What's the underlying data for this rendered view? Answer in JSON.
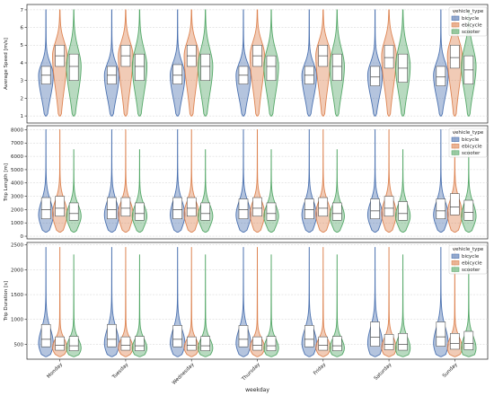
{
  "chart_data": {
    "type": "violin",
    "xlabel": "weekday",
    "categories": [
      "Monday",
      "Tuesday",
      "Wednesday",
      "Thursday",
      "Friday",
      "Saturday",
      "Sunday"
    ],
    "legend": {
      "title": "vehicle_type",
      "placement": "top-right",
      "entries": [
        {
          "name": "bicycle",
          "color": "#4c72b0"
        },
        {
          "name": "ebicycle",
          "color": "#dd8452"
        },
        {
          "name": "scooter",
          "color": "#55a868"
        }
      ]
    },
    "grid": true,
    "panels": [
      {
        "ylabel": "Average Speed [m/s]",
        "ylim": [
          0.6,
          7.3
        ],
        "yticks": [
          1,
          2,
          3,
          4,
          5,
          6,
          7
        ],
        "tick_labels": [
          "1",
          "2",
          "3",
          "4",
          "5",
          "6",
          "7"
        ],
        "series": [
          {
            "name": "bicycle",
            "min": 1.0,
            "max": 7.0,
            "q1": 2.8,
            "median": 3.3,
            "q3": 3.8,
            "mode": 3.3,
            "by_day": [
              {
                "q1": 2.8,
                "median": 3.3,
                "q3": 3.8
              },
              {
                "q1": 2.8,
                "median": 3.3,
                "q3": 3.8
              },
              {
                "q1": 2.8,
                "median": 3.3,
                "q3": 3.9
              },
              {
                "q1": 2.8,
                "median": 3.3,
                "q3": 3.8
              },
              {
                "q1": 2.8,
                "median": 3.3,
                "q3": 3.8
              },
              {
                "q1": 2.7,
                "median": 3.2,
                "q3": 3.8
              },
              {
                "q1": 2.7,
                "median": 3.2,
                "q3": 3.8
              }
            ]
          },
          {
            "name": "ebicycle",
            "min": 1.0,
            "max": 7.0,
            "q1": 3.8,
            "median": 4.4,
            "q3": 5.0,
            "mode": 4.4,
            "by_day": [
              {
                "q1": 3.8,
                "median": 4.4,
                "q3": 5.0
              },
              {
                "q1": 3.8,
                "median": 4.4,
                "q3": 5.0
              },
              {
                "q1": 3.8,
                "median": 4.4,
                "q3": 5.0
              },
              {
                "q1": 3.8,
                "median": 4.4,
                "q3": 5.0
              },
              {
                "q1": 3.8,
                "median": 4.4,
                "q3": 5.0
              },
              {
                "q1": 3.7,
                "median": 4.3,
                "q3": 5.0
              },
              {
                "q1": 3.7,
                "median": 4.3,
                "q3": 5.0
              }
            ]
          },
          {
            "name": "scooter",
            "min": 1.0,
            "max": 7.0,
            "q1": 3.0,
            "median": 3.8,
            "q3": 4.5,
            "mode": 3.8,
            "by_day": [
              {
                "q1": 3.0,
                "median": 3.8,
                "q3": 4.5
              },
              {
                "q1": 3.0,
                "median": 3.8,
                "q3": 4.5
              },
              {
                "q1": 3.0,
                "median": 3.8,
                "q3": 4.5
              },
              {
                "q1": 3.0,
                "median": 3.8,
                "q3": 4.4
              },
              {
                "q1": 3.0,
                "median": 3.8,
                "q3": 4.5
              },
              {
                "q1": 2.9,
                "median": 3.7,
                "q3": 4.5
              },
              {
                "q1": 2.8,
                "median": 3.6,
                "q3": 4.4
              }
            ]
          }
        ]
      },
      {
        "ylabel": "Trip Length [m]",
        "ylim": [
          -200,
          8300
        ],
        "yticks": [
          0,
          1000,
          2000,
          3000,
          4000,
          5000,
          6000,
          7000,
          8000
        ],
        "tick_labels": [
          "0",
          "1000",
          "2000",
          "3000",
          "4000",
          "5000",
          "6000",
          "7000",
          "8000"
        ],
        "series": [
          {
            "name": "bicycle",
            "min": 300,
            "max": 8000,
            "q1": 1300,
            "median": 2000,
            "q3": 2900,
            "mode": 1600,
            "by_day": [
              {
                "q1": 1300,
                "median": 2000,
                "q3": 2900
              },
              {
                "q1": 1300,
                "median": 2000,
                "q3": 2900
              },
              {
                "q1": 1300,
                "median": 2000,
                "q3": 2900
              },
              {
                "q1": 1300,
                "median": 2000,
                "q3": 2800
              },
              {
                "q1": 1300,
                "median": 2000,
                "q3": 2800
              },
              {
                "q1": 1300,
                "median": 1900,
                "q3": 2800
              },
              {
                "q1": 1300,
                "median": 1900,
                "q3": 2800
              }
            ]
          },
          {
            "name": "ebicycle",
            "min": 300,
            "max": 8000,
            "q1": 1500,
            "median": 2100,
            "q3": 3000,
            "mode": 1700,
            "by_day": [
              {
                "q1": 1500,
                "median": 2100,
                "q3": 3000
              },
              {
                "q1": 1500,
                "median": 2100,
                "q3": 2900
              },
              {
                "q1": 1500,
                "median": 2100,
                "q3": 2900
              },
              {
                "q1": 1500,
                "median": 2100,
                "q3": 2900
              },
              {
                "q1": 1500,
                "median": 2100,
                "q3": 2900
              },
              {
                "q1": 1500,
                "median": 2100,
                "q3": 3000
              },
              {
                "q1": 1600,
                "median": 2200,
                "q3": 3200
              }
            ]
          },
          {
            "name": "scooter",
            "min": 300,
            "max": 6500,
            "q1": 1200,
            "median": 1700,
            "q3": 2500,
            "mode": 1500,
            "by_day": [
              {
                "q1": 1200,
                "median": 1700,
                "q3": 2500
              },
              {
                "q1": 1200,
                "median": 1700,
                "q3": 2500
              },
              {
                "q1": 1200,
                "median": 1700,
                "q3": 2500
              },
              {
                "q1": 1200,
                "median": 1700,
                "q3": 2500
              },
              {
                "q1": 1200,
                "median": 1700,
                "q3": 2500
              },
              {
                "q1": 1200,
                "median": 1700,
                "q3": 2600
              },
              {
                "q1": 1200,
                "median": 1800,
                "q3": 2700
              }
            ]
          }
        ]
      },
      {
        "ylabel": "Trip Duration [s]",
        "ylim": [
          200,
          2550
        ],
        "yticks": [
          500,
          1000,
          1500,
          2000,
          2500
        ],
        "tick_labels": [
          "500",
          "1000",
          "1500",
          "2000",
          "2500"
        ],
        "series": [
          {
            "name": "bicycle",
            "min": 250,
            "max": 2450,
            "q1": 450,
            "median": 600,
            "q3": 900,
            "mode": 520,
            "by_day": [
              {
                "q1": 450,
                "median": 600,
                "q3": 900
              },
              {
                "q1": 450,
                "median": 600,
                "q3": 900
              },
              {
                "q1": 450,
                "median": 600,
                "q3": 880
              },
              {
                "q1": 450,
                "median": 600,
                "q3": 880
              },
              {
                "q1": 450,
                "median": 600,
                "q3": 880
              },
              {
                "q1": 460,
                "median": 640,
                "q3": 950
              },
              {
                "q1": 460,
                "median": 650,
                "q3": 950
              }
            ]
          },
          {
            "name": "ebicycle",
            "min": 250,
            "max": 2450,
            "q1": 380,
            "median": 480,
            "q3": 650,
            "mode": 430,
            "by_day": [
              {
                "q1": 380,
                "median": 480,
                "q3": 650
              },
              {
                "q1": 380,
                "median": 480,
                "q3": 650
              },
              {
                "q1": 380,
                "median": 480,
                "q3": 650
              },
              {
                "q1": 380,
                "median": 480,
                "q3": 650
              },
              {
                "q1": 380,
                "median": 480,
                "q3": 650
              },
              {
                "q1": 390,
                "median": 500,
                "q3": 700
              },
              {
                "q1": 400,
                "median": 520,
                "q3": 720
              }
            ]
          },
          {
            "name": "scooter",
            "min": 250,
            "max": 2300,
            "q1": 370,
            "median": 470,
            "q3": 660,
            "mode": 420,
            "by_day": [
              {
                "q1": 370,
                "median": 470,
                "q3": 660
              },
              {
                "q1": 370,
                "median": 470,
                "q3": 660
              },
              {
                "q1": 370,
                "median": 470,
                "q3": 660
              },
              {
                "q1": 370,
                "median": 470,
                "q3": 660
              },
              {
                "q1": 370,
                "median": 470,
                "q3": 660
              },
              {
                "q1": 380,
                "median": 500,
                "q3": 720
              },
              {
                "q1": 390,
                "median": 520,
                "q3": 760
              }
            ]
          }
        ]
      }
    ]
  }
}
